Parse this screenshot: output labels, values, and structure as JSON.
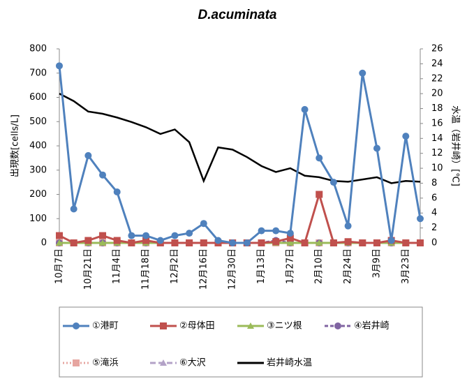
{
  "chart_data": {
    "type": "line",
    "title": "D.acuminata",
    "y_label": "出現数[cells/L]",
    "y2_label": "水温（岩井崎）[℃]",
    "categories": [
      "10月7日",
      null,
      "10月21日",
      null,
      "11月4日",
      null,
      "11月18日",
      null,
      "12月2日",
      null,
      "12月16日",
      null,
      "12月30日",
      null,
      "1月13日",
      null,
      "1月27日",
      null,
      "2月10日",
      null,
      "2月24日",
      null,
      "3月9日",
      null,
      "3月23日",
      null
    ],
    "ylim": [
      0,
      800
    ],
    "yticks": [
      0,
      100,
      200,
      300,
      400,
      500,
      600,
      700,
      800
    ],
    "y2lim": [
      0,
      26
    ],
    "y2ticks": [
      0,
      2,
      4,
      6,
      8,
      10,
      12,
      14,
      16,
      18,
      20,
      22,
      24,
      26
    ],
    "series": [
      {
        "name": "①港町",
        "color": "#4f81bd",
        "marker": "circle",
        "dash": "solid",
        "values": [
          730,
          140,
          360,
          280,
          210,
          30,
          30,
          10,
          30,
          40,
          80,
          10,
          0,
          0,
          50,
          50,
          40,
          550,
          350,
          250,
          70,
          700,
          390,
          10,
          440,
          100
        ]
      },
      {
        "name": "②母体田",
        "color": "#c0504d",
        "marker": "square",
        "dash": "solid",
        "values": [
          30,
          0,
          10,
          30,
          10,
          0,
          10,
          0,
          0,
          0,
          0,
          0,
          0,
          0,
          0,
          5,
          20,
          0,
          200,
          0,
          5,
          0,
          0,
          10,
          0,
          0
        ]
      },
      {
        "name": "③ニツ根",
        "color": "#9bbb59",
        "marker": "triangle",
        "dash": "solid",
        "values": [
          0,
          0,
          0,
          0,
          0,
          0,
          0,
          0,
          0,
          0,
          0,
          0,
          0,
          0,
          0,
          0,
          0,
          0,
          0,
          0,
          0,
          0,
          0,
          0,
          0,
          0
        ]
      },
      {
        "name": "④岩井崎",
        "color": "#8064a2",
        "marker": "circle",
        "dash": "dash",
        "values": [
          0,
          0,
          0,
          0,
          0,
          0,
          0,
          0,
          0,
          0,
          0,
          0,
          0,
          0,
          0,
          10,
          0,
          0,
          0,
          0,
          0,
          0,
          0,
          0,
          0,
          0
        ]
      },
      {
        "name": "⑤滝浜",
        "color": "#e6a5a0",
        "marker": "square",
        "dash": "dot",
        "values": [
          0,
          0,
          0,
          0,
          0,
          0,
          0,
          0,
          0,
          0,
          0,
          0,
          0,
          0,
          0,
          0,
          0,
          0,
          0,
          0,
          0,
          0,
          0,
          0,
          0,
          0
        ]
      },
      {
        "name": "⑥大沢",
        "color": "#b3a2c7",
        "marker": "triangle",
        "dash": "longdash",
        "values": [
          0,
          0,
          0,
          0,
          0,
          0,
          0,
          0,
          0,
          0,
          0,
          0,
          0,
          0,
          0,
          0,
          0,
          0,
          0,
          0,
          0,
          0,
          0,
          0,
          0,
          0
        ]
      },
      {
        "name": "岩井崎水温",
        "color": "#000000",
        "marker": "none",
        "dash": "solid",
        "axis": "y2",
        "values": [
          20,
          19,
          17.6,
          17.3,
          16.8,
          16.2,
          15.5,
          14.6,
          15.2,
          13.5,
          8.3,
          12.8,
          12.5,
          11.5,
          10.3,
          9.5,
          10,
          9,
          8.8,
          8.3,
          8.2,
          8.5,
          8.8,
          8.0,
          8.3,
          8.2
        ]
      }
    ]
  }
}
